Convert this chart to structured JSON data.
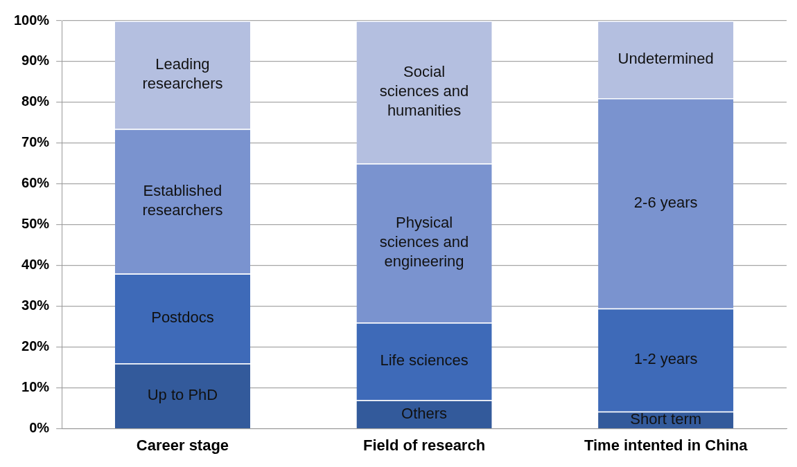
{
  "chart_data": {
    "type": "bar",
    "stacked": true,
    "categories": [
      "Career stage",
      "Field of research",
      "Time intented in China"
    ],
    "series": [
      {
        "color": "#335a9b",
        "values": [
          16,
          7,
          4.2
        ],
        "value_labels": [
          "Up to PhD",
          "Others",
          "Short term"
        ]
      },
      {
        "color": "#3e6ab8",
        "values": [
          22,
          19,
          25.3
        ],
        "value_labels": [
          "Postdocs",
          "Life sciences",
          "1-2 years"
        ]
      },
      {
        "color": "#7a93cf",
        "values": [
          35.5,
          39,
          51.5
        ],
        "value_labels": [
          "Established researchers",
          "Physical sciences and engineering",
          "2-6 years"
        ]
      },
      {
        "color": "#b4bfe0",
        "values": [
          26.5,
          35,
          19
        ],
        "value_labels": [
          "Leading researchers",
          "Social sciences and humanities",
          "Undetermined"
        ]
      }
    ],
    "ylim": [
      0,
      100
    ],
    "yticks": [
      {
        "value": 0,
        "label": "0%"
      },
      {
        "value": 10,
        "label": "10%"
      },
      {
        "value": 20,
        "label": "20%"
      },
      {
        "value": 30,
        "label": "30%"
      },
      {
        "value": 40,
        "label": "40%"
      },
      {
        "value": 50,
        "label": "50%"
      },
      {
        "value": 60,
        "label": "60%"
      },
      {
        "value": 70,
        "label": "70%"
      },
      {
        "value": 80,
        "label": "80%"
      },
      {
        "value": 90,
        "label": "90%"
      },
      {
        "value": 100,
        "label": "100%"
      }
    ],
    "grid": "y",
    "legend": false
  }
}
